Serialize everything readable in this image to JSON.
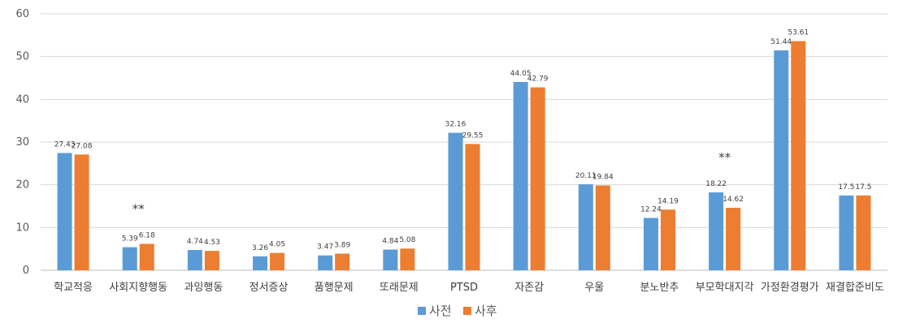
{
  "chart_data": {
    "type": "bar",
    "title": "",
    "xlabel": "",
    "ylabel": "",
    "ylim": [
      0,
      60
    ],
    "yticks": [
      0,
      10,
      20,
      30,
      40,
      50,
      60
    ],
    "grid": true,
    "legend_position": "bottom",
    "categories": [
      "학교적응",
      "사회지향행동",
      "과잉행동",
      "정서증상",
      "품행문제",
      "또래문제",
      "PTSD",
      "자존감",
      "우울",
      "분노반추",
      "부모학대지각",
      "가정환경평가",
      "재결합준비도"
    ],
    "series": [
      {
        "name": "사전",
        "color": "#5b9bd5",
        "values": [
          27.43,
          5.39,
          4.74,
          3.26,
          3.47,
          4.84,
          32.16,
          44.05,
          20.11,
          12.24,
          18.22,
          51.44,
          17.5
        ]
      },
      {
        "name": "사후",
        "color": "#ed7d31",
        "values": [
          27.08,
          6.18,
          4.53,
          4.05,
          3.89,
          5.08,
          29.55,
          42.79,
          19.84,
          14.19,
          14.62,
          53.61,
          17.5
        ]
      }
    ],
    "annotations": [
      {
        "category_index": 1,
        "text": "**"
      },
      {
        "category_index": 10,
        "text": "**"
      }
    ]
  }
}
